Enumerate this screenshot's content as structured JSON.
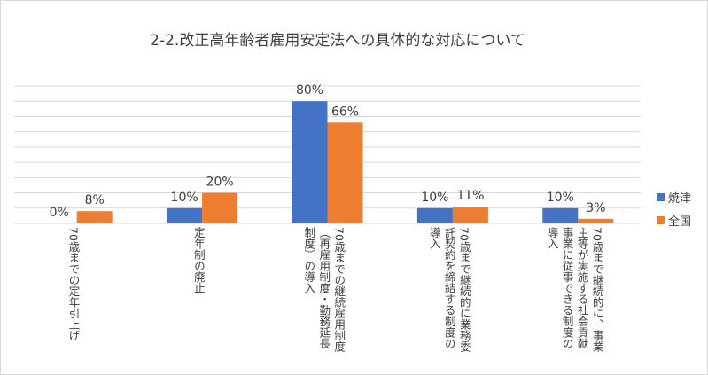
{
  "chart_data": {
    "type": "bar",
    "title": "2-2.改正高年齢者雇用安定法への具体的な対応について",
    "categories": [
      [
        "70歳までの定年引上げ"
      ],
      [
        "定年制の廃止"
      ],
      [
        "70歳までの継続雇用制度",
        "（再雇用制度・勤務延長",
        "制度）の導入"
      ],
      [
        "70歳まで継続的に業務委",
        "託契約を締結する制度の",
        "導入"
      ],
      [
        "70歳まで継続的に、事業",
        "主等が実施する社会貢献",
        "事業に従事できる制度の",
        "導入"
      ]
    ],
    "series": [
      {
        "name": "焼津",
        "values": [
          0,
          10,
          80,
          10,
          10
        ],
        "labels": [
          "0%",
          "10%",
          "80%",
          "10%",
          "10%"
        ]
      },
      {
        "name": "全国",
        "values": [
          8,
          20,
          66,
          11,
          3
        ],
        "labels": [
          "8%",
          "20%",
          "66%",
          "11%",
          "3%"
        ]
      }
    ],
    "ylim": [
      0,
      90
    ],
    "grid": true,
    "legend": "right",
    "colors": {
      "焼津": "#4472c4",
      "全国": "#ed7d31",
      "grid": "#d9d9d9",
      "text": "#404040"
    }
  }
}
